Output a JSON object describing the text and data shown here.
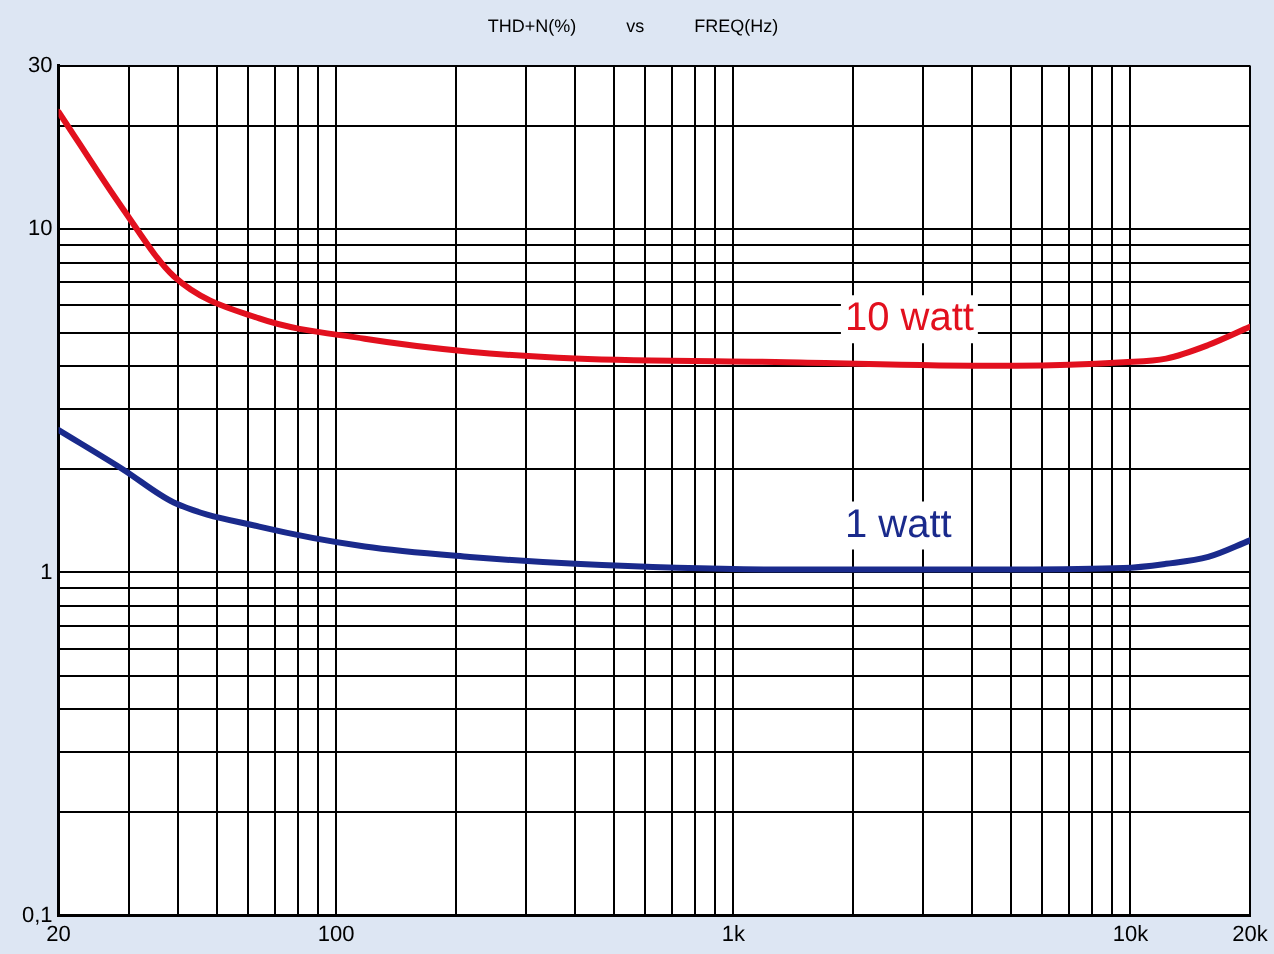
{
  "chart_data": {
    "type": "line",
    "title": "THD+N(%)          vs          FREQ(Hz)",
    "log": "xy",
    "grid": true,
    "legend": false,
    "marker": "none",
    "line_style": "solid",
    "xlim": [
      20,
      20000
    ],
    "ylim": [
      0.1,
      30
    ],
    "xticks": [
      20,
      {
        "value": 30,
        "label": null
      },
      {
        "value": 40,
        "label": null
      },
      {
        "value": 50,
        "label": null
      },
      {
        "value": 60,
        "label": null
      },
      {
        "value": 70,
        "label": null
      },
      {
        "value": 80,
        "label": null
      },
      {
        "value": 90,
        "label": null
      },
      100,
      {
        "value": 200,
        "label": null
      },
      {
        "value": 300,
        "label": null
      },
      {
        "value": 400,
        "label": null
      },
      {
        "value": 500,
        "label": null
      },
      {
        "value": 600,
        "label": null
      },
      {
        "value": 700,
        "label": null
      },
      {
        "value": 800,
        "label": null
      },
      {
        "value": 900,
        "label": null
      },
      {
        "value": 1000,
        "label": "1k"
      },
      {
        "value": 2000,
        "label": null
      },
      {
        "value": 3000,
        "label": null
      },
      {
        "value": 4000,
        "label": null
      },
      {
        "value": 5000,
        "label": null
      },
      {
        "value": 6000,
        "label": null
      },
      {
        "value": 7000,
        "label": null
      },
      {
        "value": 8000,
        "label": null
      },
      {
        "value": 9000,
        "label": null
      },
      {
        "value": 10000,
        "label": "10k"
      },
      {
        "value": 20000,
        "label": "20k"
      }
    ],
    "yticks": [
      {
        "value": 0.1,
        "label": "0,1"
      },
      {
        "value": 0.2,
        "label": null
      },
      {
        "value": 0.3,
        "label": null
      },
      {
        "value": 0.4,
        "label": null
      },
      {
        "value": 0.5,
        "label": null
      },
      {
        "value": 0.6,
        "label": null
      },
      {
        "value": 0.7,
        "label": null
      },
      {
        "value": 0.8,
        "label": null
      },
      {
        "value": 0.9,
        "label": null
      },
      1,
      {
        "value": 2,
        "label": null
      },
      {
        "value": 3,
        "label": null
      },
      {
        "value": 4,
        "label": null
      },
      {
        "value": 5,
        "label": null
      },
      {
        "value": 6,
        "label": null
      },
      {
        "value": 7,
        "label": null
      },
      {
        "value": 8,
        "label": null
      },
      {
        "value": 9,
        "label": null
      },
      10,
      {
        "value": 20,
        "label": null
      },
      30
    ],
    "x": [
      20,
      29,
      39,
      64,
      118,
      217,
      400,
      1360,
      4620,
      9600,
      12300,
      15700,
      20000
    ],
    "series": [
      {
        "name": "10 watt",
        "color": "#e2101e",
        "values": [
          22,
          11.5,
          7.3,
          5.5,
          4.8,
          4.4,
          4.2,
          4.1,
          4.0,
          4.1,
          4.2,
          4.6,
          5.2
        ]
      },
      {
        "name": "1 watt",
        "color": "#1a2a8c",
        "values": [
          2.6,
          2.0,
          1.6,
          1.36,
          1.19,
          1.11,
          1.06,
          1.02,
          1.02,
          1.03,
          1.06,
          1.11,
          1.24
        ]
      }
    ]
  }
}
